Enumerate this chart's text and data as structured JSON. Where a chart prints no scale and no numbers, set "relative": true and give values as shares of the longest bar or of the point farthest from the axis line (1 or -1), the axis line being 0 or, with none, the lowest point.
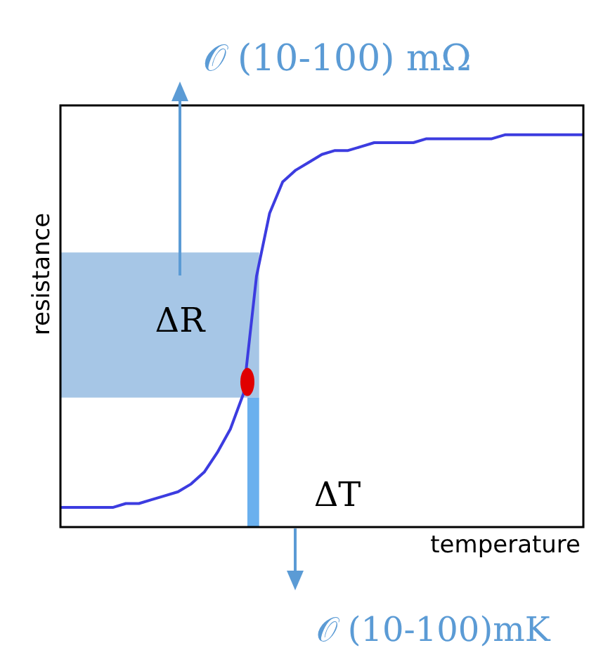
{
  "chart_data": {
    "type": "line",
    "relative": true,
    "xlabel": "temperature",
    "ylabel": "resistance",
    "categories": [
      null,
      null,
      null,
      null,
      null,
      null,
      null,
      null,
      null,
      null,
      null,
      null,
      null,
      null,
      null,
      null,
      null,
      null,
      null,
      null,
      null,
      null,
      null,
      null,
      null,
      null,
      null,
      null,
      null,
      null,
      null,
      null,
      null,
      null,
      null,
      null,
      null,
      null,
      null,
      null,
      null
    ],
    "series": [
      {
        "color": "#3c3ce0",
        "values": [
          0.05,
          0.05,
          0.05,
          0.05,
          0.05,
          0.06,
          0.06,
          0.07,
          0.08,
          0.09,
          0.11,
          0.14,
          0.19,
          0.25,
          0.34,
          0.64,
          0.8,
          0.88,
          0.91,
          0.93,
          0.95,
          0.96,
          0.96,
          0.97,
          0.98,
          0.98,
          0.98,
          0.98,
          0.99,
          0.99,
          0.99,
          0.99,
          0.99,
          0.99,
          1,
          1,
          1,
          1,
          1,
          1,
          1
        ]
      }
    ],
    "bands": [
      {
        "axis": "y",
        "from": 0.33,
        "to": 0.7,
        "color": "#a6c6e6"
      }
    ],
    "annotations": [
      "𝒪 (10-100) mΩ",
      "ΔR",
      "ΔT",
      "𝒪 (10-100)mK"
    ],
    "grid": false
  }
}
